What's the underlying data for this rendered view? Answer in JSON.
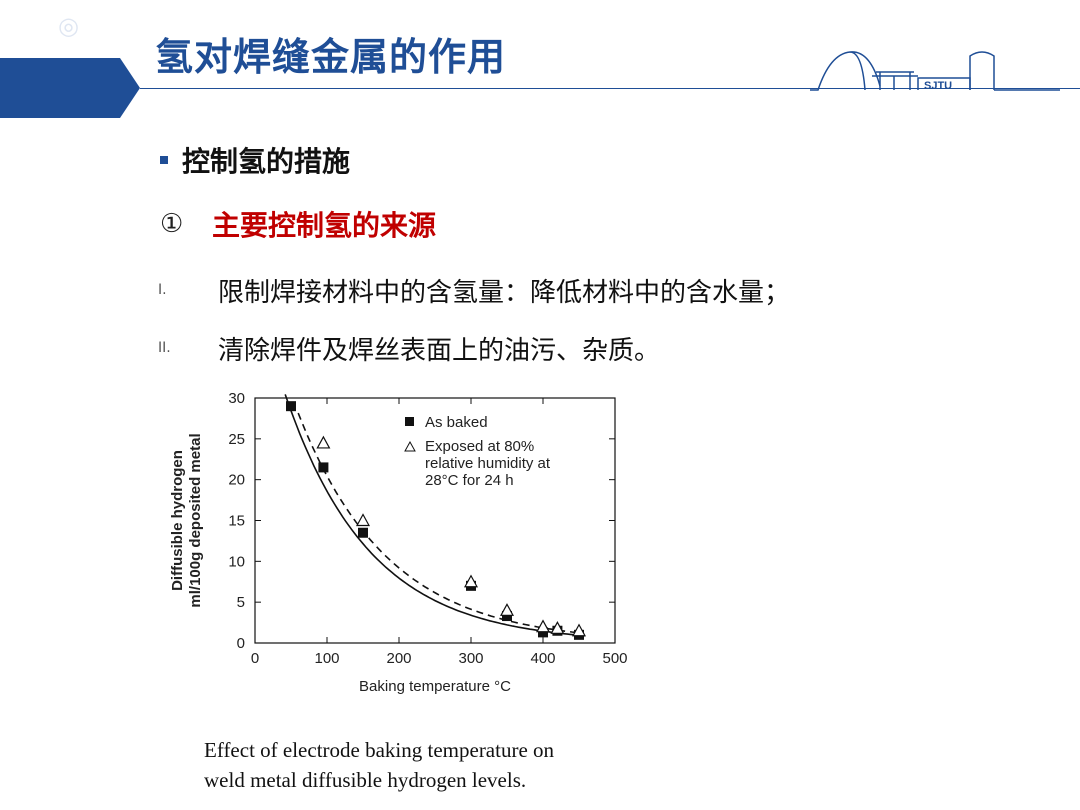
{
  "header": {
    "title": "氢对焊缝金属的作用",
    "logo_text": "SJTU"
  },
  "bullet": {
    "label": "控制氢的措施"
  },
  "numbered": {
    "marker": "①",
    "label": "主要控制氢的来源"
  },
  "items": [
    {
      "marker": "I.",
      "text": "限制焊接材料中的含氢量：降低材料中的含水量；"
    },
    {
      "marker": "II.",
      "text": "清除焊件及焊丝表面上的油污、杂质。"
    }
  ],
  "chart_data": {
    "type": "scatter",
    "xlabel": "Baking temperature °C",
    "ylabel": [
      "Diffusible hydrogen",
      "ml/100g deposited metal"
    ],
    "xlim": [
      0,
      500
    ],
    "ylim": [
      0,
      30
    ],
    "xticks": [
      0,
      100,
      200,
      300,
      400,
      500
    ],
    "yticks": [
      0,
      5,
      10,
      15,
      20,
      25,
      30
    ],
    "legend_position": "top-right",
    "series": [
      {
        "name": "As baked",
        "marker": "square",
        "line": "solid",
        "x": [
          50,
          95,
          150,
          300,
          350,
          400,
          420,
          450
        ],
        "y": [
          29,
          21.5,
          13.5,
          7,
          3.3,
          1.3,
          1.5,
          1.0
        ]
      },
      {
        "name": "Exposed at 80% relative humidity at 28°C for 24 h",
        "legend_lines": [
          "Exposed at 80%",
          "relative humidity at",
          "28°C for 24 h"
        ],
        "marker": "triangle",
        "line": "dashed",
        "x": [
          95,
          150,
          300,
          350,
          400,
          420,
          450
        ],
        "y": [
          24.5,
          15,
          7.5,
          4,
          2,
          1.8,
          1.5
        ]
      }
    ]
  },
  "caption": {
    "line1": "Effect of electrode baking temperature on",
    "line2": "weld metal diffusible hydrogen levels."
  },
  "colors": {
    "brand": "#1f4e96",
    "accent": "#c00000"
  }
}
